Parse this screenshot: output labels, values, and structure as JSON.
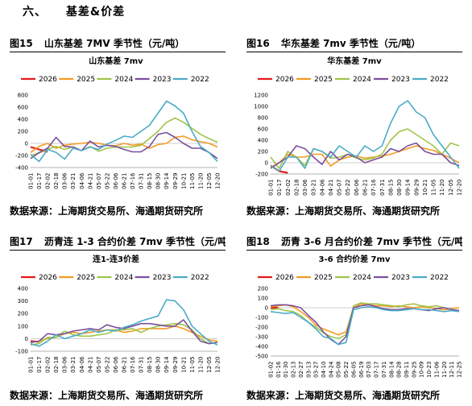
{
  "section": {
    "number": "六、",
    "title": "基差&价差"
  },
  "figures": [
    {
      "label": "图15",
      "caption": "山东基差 7MV 季节性（元/吨）",
      "source": "数据来源：上海期货交易所、海通期货研究所",
      "chart_data": {
        "type": "line",
        "title": "山东基差 7mv",
        "series_names": [
          "2026",
          "2025",
          "2024",
          "2023",
          "2022"
        ],
        "ylim": [
          -400,
          800
        ],
        "yticks": [
          -400,
          -200,
          0,
          200,
          400,
          600,
          800
        ],
        "x_labels": [
          "01-01",
          "01-17",
          "02-02",
          "02-18",
          "03-06",
          "03-21",
          "04-06",
          "04-21",
          "05-07",
          "05-22",
          "06-06",
          "06-21",
          "07-16",
          "07-31",
          "08-15",
          "08-30",
          "09-14",
          "09-29",
          "10-21",
          "11-05",
          "11-20",
          "12-05",
          "12-20"
        ],
        "series": [
          {
            "name": "2026",
            "values": [
              -60,
              -100,
              -140
            ]
          },
          {
            "name": "2025",
            "values": [
              -150,
              -50,
              0,
              -80,
              -30,
              -10,
              0,
              20,
              0,
              -30,
              -40,
              0,
              -30,
              -10,
              -80,
              -20,
              0,
              100,
              120,
              60,
              30,
              0,
              -60
            ]
          },
          {
            "name": "2024",
            "values": [
              -200,
              -160,
              -100,
              -50,
              -100,
              -60,
              -120,
              -50,
              -130,
              -80,
              -60,
              -60,
              -60,
              -30,
              80,
              200,
              350,
              420,
              350,
              250,
              150,
              80,
              20
            ]
          },
          {
            "name": "2023",
            "values": [
              -250,
              -150,
              -80,
              100,
              -50,
              -60,
              -120,
              40,
              -60,
              -30,
              -50,
              -100,
              -140,
              -140,
              -50,
              150,
              180,
              100,
              0,
              -80,
              -80,
              -150,
              -250
            ]
          },
          {
            "name": "2022",
            "values": [
              -180,
              -300,
              -100,
              -150,
              -260,
              -80,
              -120,
              -60,
              -100,
              -10,
              50,
              120,
              100,
              200,
              300,
              500,
              700,
              620,
              500,
              200,
              -50,
              -150,
              -300
            ]
          }
        ]
      }
    },
    {
      "label": "图16",
      "caption": "华东基差 7mv 季节性（元/吨）",
      "source": "数据来源：上海期货交易所、海通期货研究所",
      "chart_data": {
        "type": "line",
        "title": "华东基差 7mv",
        "series_names": [
          "2026",
          "2025",
          "2024",
          "2023",
          "2022"
        ],
        "ylim": [
          -200,
          1200
        ],
        "yticks": [
          -200,
          0,
          200,
          400,
          600,
          800,
          1000,
          1200
        ],
        "x_labels": [
          "01-01",
          "01-17",
          "02-02",
          "02-18",
          "03-06",
          "03-21",
          "04-06",
          "04-21",
          "05-07",
          "05-22",
          "06-06",
          "06-21",
          "07-16",
          "07-31",
          "08-15",
          "08-30",
          "09-14",
          "09-29",
          "10-21",
          "11-05",
          "11-20",
          "12-05",
          "12-20"
        ],
        "series": [
          {
            "name": "2026",
            "values": [
              -50,
              -150,
              -180
            ]
          },
          {
            "name": "2025",
            "values": [
              -80,
              0,
              150,
              100,
              100,
              150,
              150,
              -60,
              50,
              100,
              120,
              80,
              100,
              120,
              150,
              200,
              250,
              300,
              250,
              220,
              150,
              80,
              0
            ]
          },
          {
            "name": "2024",
            "values": [
              100,
              -100,
              200,
              100,
              -50,
              250,
              200,
              80,
              100,
              150,
              80,
              50,
              80,
              150,
              400,
              550,
              600,
              500,
              400,
              300,
              150,
              350,
              300
            ]
          },
          {
            "name": "2023",
            "values": [
              -100,
              0,
              100,
              300,
              250,
              100,
              -30,
              200,
              50,
              150,
              100,
              0,
              50,
              100,
              250,
              200,
              300,
              350,
              200,
              150,
              150,
              0,
              -50
            ]
          },
          {
            "name": "2022",
            "values": [
              -50,
              -150,
              100,
              100,
              -100,
              250,
              200,
              100,
              300,
              200,
              100,
              300,
              200,
              300,
              700,
              1000,
              1100,
              900,
              800,
              500,
              300,
              100,
              -100
            ]
          }
        ]
      }
    },
    {
      "label": "图17",
      "caption": "沥青连 1-3 合约价差 7mv 季节性（元/吨）",
      "source": "数据来源：上海期货交易所、海通期货研究所",
      "chart_data": {
        "type": "line",
        "title": "连1-连3价差",
        "series_names": [
          "2026",
          "2025",
          "2024",
          "2023",
          "2022"
        ],
        "ylim": [
          -100,
          400
        ],
        "yticks": [
          -100,
          0,
          100,
          200,
          300,
          400
        ],
        "x_labels": [
          "01-01",
          "01-17",
          "02-02",
          "02-18",
          "03-06",
          "03-21",
          "04-06",
          "04-21",
          "05-07",
          "05-22",
          "06-06",
          "06-21",
          "07-16",
          "07-31",
          "08-15",
          "08-30",
          "09-14",
          "09-29",
          "10-21",
          "11-05",
          "11-20",
          "12-05",
          "12-20"
        ],
        "series": [
          {
            "name": "2026",
            "values": [
              -20,
              -25
            ]
          },
          {
            "name": "2025",
            "values": [
              -30,
              -20,
              0,
              10,
              40,
              50,
              40,
              50,
              60,
              70,
              70,
              50,
              60,
              80,
              80,
              80,
              80,
              100,
              80,
              50,
              20,
              -10,
              -20
            ]
          },
          {
            "name": "2024",
            "values": [
              -50,
              -40,
              10,
              10,
              60,
              30,
              20,
              20,
              30,
              40,
              70,
              70,
              80,
              50,
              80,
              100,
              110,
              120,
              110,
              70,
              0,
              -40,
              -30
            ]
          },
          {
            "name": "2023",
            "values": [
              -30,
              -20,
              40,
              30,
              40,
              60,
              70,
              80,
              70,
              110,
              90,
              80,
              100,
              120,
              120,
              110,
              100,
              100,
              150,
              60,
              -20,
              -40,
              -30
            ]
          },
          {
            "name": "2022",
            "values": [
              -40,
              -60,
              -20,
              30,
              0,
              20,
              40,
              70,
              50,
              70,
              60,
              90,
              110,
              140,
              160,
              180,
              310,
              300,
              230,
              100,
              40,
              -20,
              -50
            ]
          }
        ]
      }
    },
    {
      "label": "图18",
      "caption": "沥青 3-6 月合约价差 7mv 季节性（元/吨）",
      "source": "数据来源：上海期货交易所、海通期货研究所",
      "chart_data": {
        "type": "line",
        "title": "3-6 合约价差 7mv",
        "series_names": [
          "2026",
          "2025",
          "2024",
          "2023",
          "2022"
        ],
        "ylim": [
          -500,
          200
        ],
        "yticks": [
          -500,
          -400,
          -300,
          -200,
          -100,
          0,
          100,
          200
        ],
        "x_labels": [
          "01-02",
          "01-16",
          "01-30",
          "02-13",
          "02-27",
          "03-13",
          "03-27",
          "04-10",
          "04-24",
          "05-08",
          "05-22",
          "06-05",
          "06-19",
          "07-03",
          "07-17",
          "07-31",
          "08-14",
          "08-28",
          "09-11",
          "09-25",
          "10-09",
          "10-23",
          "11-06",
          "11-20",
          "12-11",
          "12-25"
        ],
        "series": [
          {
            "name": "2026",
            "values": [
              0,
              0
            ]
          },
          {
            "name": "2025",
            "values": [
              10,
              20,
              30,
              10,
              -40,
              -100,
              -180,
              -220,
              -250,
              -280,
              -250,
              0,
              40,
              30,
              20,
              20,
              10,
              20,
              10,
              0,
              10,
              0,
              -10,
              -20,
              -10,
              0
            ]
          },
          {
            "name": "2024",
            "values": [
              -20,
              -10,
              -30,
              -40,
              -80,
              -150,
              -200,
              -260,
              -300,
              -320,
              -280,
              20,
              50,
              40,
              40,
              30,
              20,
              10,
              30,
              40,
              20,
              10,
              20,
              0,
              -20,
              -30
            ]
          },
          {
            "name": "2023",
            "values": [
              20,
              30,
              30,
              20,
              0,
              -80,
              -150,
              -250,
              -330,
              -380,
              -300,
              0,
              20,
              30,
              10,
              -10,
              -20,
              -20,
              -10,
              -10,
              -20,
              -30,
              -10,
              0,
              -20,
              -30
            ]
          },
          {
            "name": "2022",
            "values": [
              -40,
              -50,
              -60,
              -50,
              -100,
              -150,
              -220,
              -300,
              -320,
              -380,
              -360,
              -20,
              0,
              10,
              0,
              -20,
              -30,
              -30,
              -20,
              -10,
              -20,
              -20,
              -30,
              -40,
              -30,
              -40
            ]
          }
        ]
      }
    }
  ],
  "colors": {
    "2026": "#e31a1c",
    "2025": "#f59a23",
    "2024": "#9fc54a",
    "2023": "#7b4f9d",
    "2022": "#4bacc6"
  }
}
